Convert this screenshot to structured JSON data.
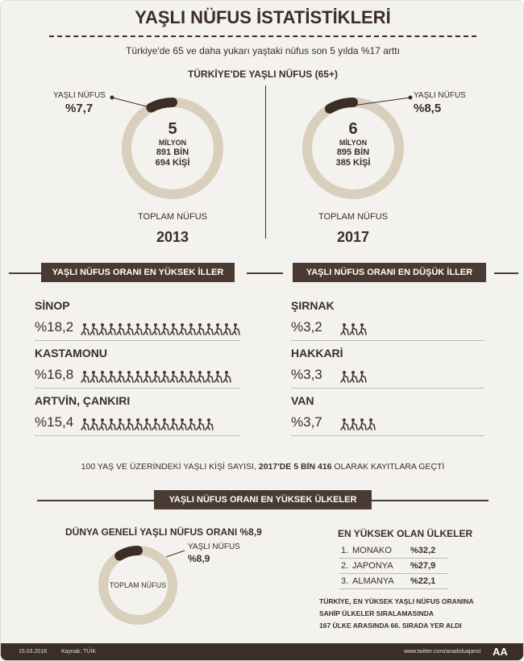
{
  "header": {
    "title": "YAŞLI NÜFUS İSTATİSTİKLERİ",
    "subtitle": "Türkiye'de 65 ve daha yukarı yaştaki nüfus son 5 yılda %17 arttı"
  },
  "turkey": {
    "title": "TÜRKİYE'DE YAŞLI NÜFUS (65+)",
    "years": [
      {
        "year": "2013",
        "elderly_label": "YAŞLI NÜFUS",
        "elderly_share": {
          "value": 7.7,
          "label": "%7,7"
        },
        "total_lines": [
          "5",
          "MİLYON",
          "891 BİN",
          "694 KİŞİ"
        ],
        "total_label": "TOPLAM NÜFUS"
      },
      {
        "year": "2017",
        "elderly_label": "YAŞLI NÜFUS",
        "elderly_share": {
          "value": 8.5,
          "label": "%8,5"
        },
        "total_lines": [
          "6",
          "MİLYON",
          "895 BİN",
          "385 KİŞİ"
        ],
        "total_label": "TOPLAM NÜFUS"
      }
    ]
  },
  "provinces": [
    {
      "title": "YAŞLI NÜFUS ORANI EN YÜKSEK İLLER",
      "rows": [
        {
          "name": "SİNOP",
          "share": {
            "value": 18.2,
            "label": "%18,2"
          }
        },
        {
          "name": "KASTAMONU",
          "share": {
            "value": 16.8,
            "label": "%16,8"
          }
        },
        {
          "name": "ARTVİN, ÇANKIRI",
          "share": {
            "value": 15.4,
            "label": "%15,4"
          }
        }
      ]
    },
    {
      "title": "YAŞLI NÜFUS ORANI EN DÜŞÜK İLLER",
      "rows": [
        {
          "name": "ŞIRNAK",
          "share": {
            "value": 3.2,
            "label": "%3,2"
          }
        },
        {
          "name": "HAKKARİ",
          "share": {
            "value": 3.3,
            "label": "%3,3"
          }
        },
        {
          "name": "VAN",
          "share": {
            "value": 3.7,
            "label": "%3,7"
          }
        }
      ]
    }
  ],
  "centenarian_note": [
    "100 YAŞ VE ÜZERİNDEKİ YAŞLI KİŞİ SAYISI,",
    "2017'DE 5 BİN 416",
    "OLARAK KAYITLARA GEÇTİ"
  ],
  "world": {
    "banner": "YAŞLI NÜFUS ORANI EN YÜKSEK ÜLKELER",
    "title": "DÜNYA GENELİ YAŞLI NÜFUS ORANI %8,9",
    "elderly_label": "YAŞLI NÜFUS",
    "elderly_share": {
      "value": 8.9,
      "label": "%8,9"
    },
    "total_label": "TOPLAM NÜFUS",
    "top_title": "EN YÜKSEK OLAN ÜLKELER",
    "top": [
      {
        "rank": "1.",
        "name": "MONAKO",
        "share": "%32,2"
      },
      {
        "rank": "2.",
        "name": "JAPONYA",
        "share": "%27,9"
      },
      {
        "rank": "3.",
        "name": "ALMANYA",
        "share": "%22,1"
      }
    ],
    "note": [
      "TÜRKİYE, EN YÜKSEK YAŞLI NÜFUS ORANINA",
      "SAHİP ÜLKELER SIRALAMASINDA",
      "167 ÜLKE ARASINDA 66. SIRADA YER ALDI"
    ]
  },
  "footer": {
    "date": "15.03.2018",
    "source": "Kaynak: TÜİK",
    "url": "www.twitter.com/anadoluajansi",
    "logo": "AA"
  }
}
